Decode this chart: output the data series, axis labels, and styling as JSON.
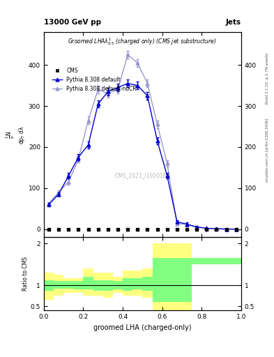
{
  "title_top": "13000 GeV pp",
  "title_right": "Jets",
  "watermark": "CMS_2021_I1920187",
  "right_label": "mcplots.cern.ch [arXiv:1306.3436]",
  "right_label2": "Rivet 3.1.10, ≥ 2.7M events",
  "ylabel_ratio": "Ratio to CMS",
  "xlabel": "groomed LHA (charged-only)",
  "cms_x": [
    0.025,
    0.075,
    0.125,
    0.175,
    0.225,
    0.275,
    0.325,
    0.375,
    0.425,
    0.475,
    0.525,
    0.575,
    0.625,
    0.675,
    0.725,
    0.775,
    0.825,
    0.875,
    0.925,
    0.975
  ],
  "cms_y": [
    0,
    0,
    0,
    0,
    0,
    0,
    0,
    0,
    0,
    0,
    0,
    0,
    0,
    0,
    0,
    0,
    0,
    0,
    0,
    0
  ],
  "py_x": [
    0.025,
    0.075,
    0.125,
    0.175,
    0.225,
    0.275,
    0.325,
    0.375,
    0.425,
    0.475,
    0.525,
    0.575,
    0.625,
    0.675,
    0.725,
    0.775,
    0.825,
    0.875,
    0.925,
    0.975
  ],
  "py_y": [
    60,
    85,
    130,
    175,
    205,
    305,
    335,
    345,
    355,
    350,
    325,
    215,
    130,
    18,
    12,
    5,
    2,
    1,
    0,
    0
  ],
  "py_yerr": [
    4,
    4,
    7,
    7,
    9,
    9,
    9,
    9,
    9,
    9,
    9,
    9,
    7,
    4,
    4,
    2,
    1,
    1,
    0,
    0
  ],
  "nocr_x": [
    0.025,
    0.075,
    0.125,
    0.175,
    0.225,
    0.275,
    0.325,
    0.375,
    0.425,
    0.475,
    0.525,
    0.575,
    0.625,
    0.675,
    0.725,
    0.775,
    0.825,
    0.875,
    0.925,
    0.975
  ],
  "nocr_y": [
    62,
    90,
    115,
    170,
    265,
    340,
    330,
    340,
    425,
    405,
    355,
    255,
    160,
    13,
    12,
    5,
    2,
    1,
    0,
    0
  ],
  "nocr_yerr": [
    4,
    4,
    7,
    7,
    9,
    9,
    9,
    9,
    9,
    9,
    9,
    9,
    7,
    4,
    4,
    2,
    1,
    1,
    0,
    0
  ],
  "yticks_main": [
    0,
    100,
    200,
    300,
    400,
    500,
    600,
    700,
    800,
    900
  ],
  "ylim_main_lo": -20,
  "ylim_main_hi": 480,
  "ratio_bin_edges": [
    0.0,
    0.05,
    0.1,
    0.15,
    0.2,
    0.25,
    0.3,
    0.35,
    0.4,
    0.45,
    0.5,
    0.55,
    0.6,
    0.65,
    0.7,
    0.75,
    0.8,
    0.85,
    0.9,
    0.95,
    1.0
  ],
  "ratio_yellow_lo": [
    0.65,
    0.75,
    0.82,
    0.82,
    0.75,
    0.75,
    0.7,
    0.82,
    0.75,
    0.75,
    0.7,
    0.4,
    0.4,
    0.4,
    0.4,
    2.0,
    2.0,
    2.0,
    2.0,
    2.0
  ],
  "ratio_yellow_hi": [
    1.3,
    1.25,
    1.18,
    1.18,
    1.4,
    1.3,
    1.3,
    1.2,
    1.35,
    1.35,
    1.4,
    2.0,
    2.0,
    2.0,
    2.0,
    2.0,
    2.0,
    2.0,
    2.0,
    2.0
  ],
  "ratio_green_lo": [
    0.88,
    0.92,
    0.92,
    0.9,
    0.9,
    0.88,
    0.88,
    0.9,
    0.88,
    0.9,
    0.88,
    0.6,
    0.6,
    0.6,
    0.6,
    1.5,
    1.5,
    1.5,
    1.5,
    1.5
  ],
  "ratio_green_hi": [
    1.12,
    1.1,
    1.1,
    1.1,
    1.2,
    1.12,
    1.12,
    1.1,
    1.18,
    1.18,
    1.2,
    1.65,
    1.65,
    1.65,
    1.65,
    1.65,
    1.65,
    1.65,
    1.65,
    1.65
  ],
  "color_py": "#0000cc",
  "color_nocr": "#9999cc",
  "color_cms": "black",
  "color_yellow": "#ffff80",
  "color_green": "#80ff80"
}
